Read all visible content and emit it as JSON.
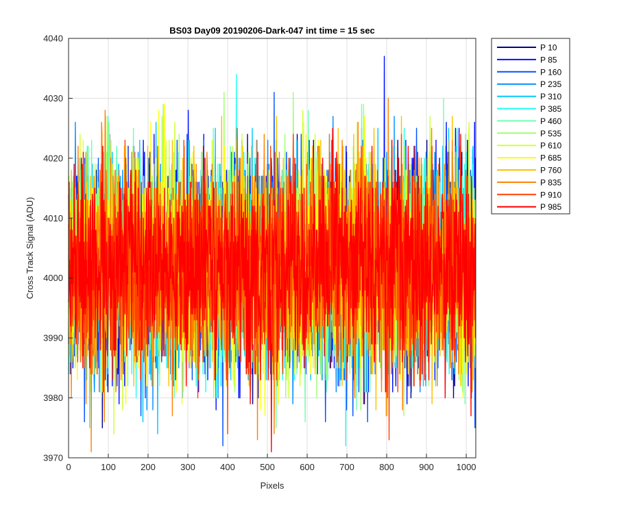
{
  "chart_data": {
    "type": "line",
    "title": "BS03 Day09 20190206-Dark-047 int time = 15 sec",
    "xlabel": "Pixels",
    "ylabel": "Cross Track Signal (ADU)",
    "xlim": [
      0,
      1024
    ],
    "ylim": [
      3970,
      4040
    ],
    "xticks": [
      "0",
      "100",
      "200",
      "300",
      "400",
      "500",
      "600",
      "700",
      "800",
      "900",
      "1000"
    ],
    "yticks": [
      "3970",
      "3980",
      "3990",
      "4000",
      "4010",
      "4020",
      "4030",
      "4040"
    ],
    "grid": true,
    "legend_position": "outside-top-right",
    "signal_level": 4002,
    "series": [
      {
        "name": "P 10",
        "color": "#00008f"
      },
      {
        "name": "P 85",
        "color": "#0010ff"
      },
      {
        "name": "P 160",
        "color": "#0050ff"
      },
      {
        "name": "P 235",
        "color": "#0090ff"
      },
      {
        "name": "P 310",
        "color": "#00c8ff"
      },
      {
        "name": "P 385",
        "color": "#20ffef"
      },
      {
        "name": "P 460",
        "color": "#70ffb0"
      },
      {
        "name": "P 535",
        "color": "#9fff70"
      },
      {
        "name": "P 610",
        "color": "#d0ff30"
      },
      {
        "name": "P 685",
        "color": "#ffff00"
      },
      {
        "name": "P 760",
        "color": "#ffc000"
      },
      {
        "name": "P 835",
        "color": "#ff8000"
      },
      {
        "name": "P 910",
        "color": "#ff4000"
      },
      {
        "name": "P 985",
        "color": "#ff0000"
      }
    ]
  }
}
